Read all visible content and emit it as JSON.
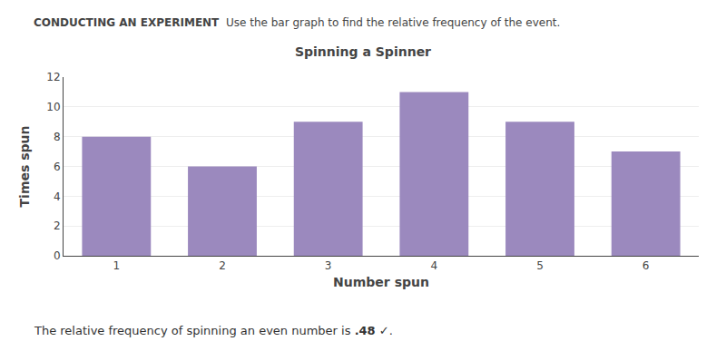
{
  "chart_data": {
    "type": "bar",
    "title": "Spinning a Spinner",
    "xlabel": "Number spun",
    "ylabel": "Times spun",
    "categories": [
      1,
      2,
      3,
      4,
      5,
      6
    ],
    "values": [
      8,
      6,
      9,
      11,
      9,
      7
    ],
    "color": "#9B89BE",
    "ylim": [
      0,
      12
    ],
    "yticks": [
      0,
      2,
      4,
      6,
      8,
      10,
      12
    ],
    "grid": true,
    "annotations": [
      "CONDUCTING AN EXPERIMENT",
      "Use the bar graph to find the relative frequency of the event.",
      "The relative frequency of spinning an even number is",
      ".48",
      "✓",
      "."
    ]
  }
}
